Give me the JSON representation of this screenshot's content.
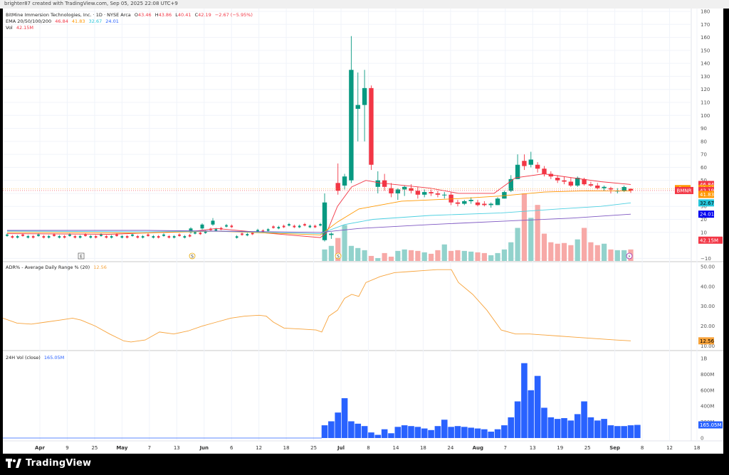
{
  "header": {
    "text": "brighter87 created with TradingView.com, Sep 05, 2025 22:08 UTC+9"
  },
  "legend": {
    "symbol": "BitMine Immersion Technologies, Inc. · 1D · NYSE Arca",
    "ohlc": [
      {
        "label": "O",
        "value": "43.46"
      },
      {
        "label": "H",
        "value": "43.86"
      },
      {
        "label": "L",
        "value": "40.41"
      },
      {
        "label": "C",
        "value": "42.19"
      }
    ],
    "change": "−2.67 (−5.95%)",
    "ema_label": "EMA 20/50/100/200",
    "ema_values": [
      "46.84",
      "41.83",
      "32.67",
      "24.01"
    ],
    "vol_label": "Vol",
    "vol_value": "42.15M",
    "adr_label": "ADR% - Average Daily Range % (20)",
    "adr_value": "12.56",
    "vol24_label": "24H Vol (close)",
    "vol24_value": "165.05M"
  },
  "footer": {
    "brand": "TradingView"
  },
  "colors": {
    "up": "#089981",
    "down": "#f23645",
    "up_vol": "#92d2cc",
    "down_vol": "#f7a9a7",
    "ema20": "#f23645",
    "ema50": "#ff9800",
    "ema100": "#4dd0e1",
    "ema200": "#7e57c2",
    "adr": "#f7a33b",
    "vol24": "#2962ff",
    "grid": "#f0f3fa",
    "text": "#131722"
  },
  "chart_data": [
    {
      "type": "candlestick",
      "title": "BitMine Immersion Technologies, Inc. · 1D · NYSE Arca",
      "symbol": "BMNR",
      "y_ticks": [
        -10,
        10,
        20,
        30,
        40,
        50,
        60,
        70,
        80,
        90,
        100,
        110,
        120,
        130,
        140,
        150,
        160,
        170,
        180
      ],
      "ylim": [
        -12,
        180
      ],
      "x_ticks": [
        "Apr",
        "9",
        "25",
        "May",
        "7",
        "13",
        "Jun",
        "6",
        "12",
        "18",
        "25",
        "Jul",
        "8",
        "14",
        "18",
        "24",
        "Aug",
        "7",
        "13",
        "19",
        "25",
        "Sep",
        "8",
        "12",
        "18"
      ],
      "price_labels": [
        {
          "name": "EMA20",
          "value": "46.84"
        },
        {
          "name": "Pre",
          "value": "43.66"
        },
        {
          "name": "BMNR",
          "value": "42.19"
        },
        {
          "name": "EMA50",
          "value": "41.83"
        },
        {
          "name": "EMA100",
          "value": "32.67"
        },
        {
          "name": "EMA200",
          "value": "24.01"
        },
        {
          "name": "Vol",
          "value": "42.15M"
        }
      ],
      "events": [
        {
          "date": "Apr 18",
          "label": "E"
        },
        {
          "date": "May 15",
          "label": "S"
        },
        {
          "date": "Jul 1",
          "label": "S"
        },
        {
          "date": "Sep 4",
          "label": "⚡"
        }
      ],
      "candles": [
        {
          "d": "Jul 1",
          "o": 4,
          "h": 40,
          "l": 3,
          "c": 33
        },
        {
          "d": "Jul 2",
          "o": 8,
          "h": 10,
          "l": 5,
          "c": 9
        },
        {
          "d": "Jul 3",
          "o": 48,
          "h": 63,
          "l": 39,
          "c": 42
        },
        {
          "d": "Jul 4",
          "o": 46,
          "h": 55,
          "l": 43,
          "c": 53
        },
        {
          "d": "Jul 7",
          "o": 50,
          "h": 161,
          "l": 48,
          "c": 135
        },
        {
          "d": "Jul 8",
          "o": 105,
          "h": 133,
          "l": 80,
          "c": 108
        },
        {
          "d": "Jul 9",
          "o": 108,
          "h": 135,
          "l": 80,
          "c": 121
        },
        {
          "d": "Jul 10",
          "o": 121,
          "h": 123,
          "l": 58,
          "c": 62
        },
        {
          "d": "Jul 11",
          "o": 45,
          "h": 57,
          "l": 40,
          "c": 50
        },
        {
          "d": "Jul 14",
          "o": 50,
          "h": 55,
          "l": 42,
          "c": 45
        },
        {
          "d": "Jul 15",
          "o": 44,
          "h": 48,
          "l": 37,
          "c": 40
        },
        {
          "d": "Jul 16",
          "o": 40,
          "h": 44,
          "l": 35,
          "c": 43
        },
        {
          "d": "Jul 17",
          "o": 43,
          "h": 46,
          "l": 38,
          "c": 45
        },
        {
          "d": "Jul 18",
          "o": 44,
          "h": 47,
          "l": 40,
          "c": 42
        },
        {
          "d": "Jul 21",
          "o": 42,
          "h": 45,
          "l": 36,
          "c": 39
        },
        {
          "d": "Jul 22",
          "o": 39,
          "h": 43,
          "l": 37,
          "c": 41
        },
        {
          "d": "Jul 23",
          "o": 41,
          "h": 43,
          "l": 38,
          "c": 40
        },
        {
          "d": "Jul 24",
          "o": 40,
          "h": 42,
          "l": 37,
          "c": 39
        },
        {
          "d": "Jul 25",
          "o": 39,
          "h": 41,
          "l": 36,
          "c": 39
        },
        {
          "d": "Jul 28",
          "o": 39,
          "h": 41,
          "l": 31,
          "c": 33
        },
        {
          "d": "Jul 29",
          "o": 33,
          "h": 35,
          "l": 30,
          "c": 32
        },
        {
          "d": "Jul 30",
          "o": 32,
          "h": 35,
          "l": 31,
          "c": 34
        },
        {
          "d": "Jul 31",
          "o": 34,
          "h": 37,
          "l": 32,
          "c": 35
        },
        {
          "d": "Aug 1",
          "o": 33,
          "h": 35,
          "l": 30,
          "c": 31
        },
        {
          "d": "Aug 4",
          "o": 32,
          "h": 34,
          "l": 30,
          "c": 31
        },
        {
          "d": "Aug 5",
          "o": 31,
          "h": 33,
          "l": 29,
          "c": 32
        },
        {
          "d": "Aug 6",
          "o": 31,
          "h": 37,
          "l": 31,
          "c": 36
        },
        {
          "d": "Aug 7",
          "o": 36,
          "h": 42,
          "l": 36,
          "c": 41
        },
        {
          "d": "Aug 8",
          "o": 42,
          "h": 54,
          "l": 41,
          "c": 51
        },
        {
          "d": "Aug 11",
          "o": 51,
          "h": 70,
          "l": 51,
          "c": 62
        },
        {
          "d": "Aug 12",
          "o": 65,
          "h": 70,
          "l": 58,
          "c": 61
        },
        {
          "d": "Aug 13",
          "o": 62,
          "h": 72,
          "l": 60,
          "c": 66
        },
        {
          "d": "Aug 14",
          "o": 62,
          "h": 64,
          "l": 56,
          "c": 59
        },
        {
          "d": "Aug 15",
          "o": 59,
          "h": 61,
          "l": 53,
          "c": 55
        },
        {
          "d": "Aug 18",
          "o": 55,
          "h": 57,
          "l": 51,
          "c": 53
        },
        {
          "d": "Aug 19",
          "o": 52,
          "h": 54,
          "l": 48,
          "c": 50
        },
        {
          "d": "Aug 20",
          "o": 50,
          "h": 53,
          "l": 47,
          "c": 49
        },
        {
          "d": "Aug 21",
          "o": 49,
          "h": 52,
          "l": 45,
          "c": 46
        },
        {
          "d": "Aug 22",
          "o": 46,
          "h": 53,
          "l": 45,
          "c": 52
        },
        {
          "d": "Aug 25",
          "o": 51,
          "h": 52,
          "l": 46,
          "c": 47
        },
        {
          "d": "Aug 26",
          "o": 47,
          "h": 49,
          "l": 45,
          "c": 46
        },
        {
          "d": "Aug 27",
          "o": 46,
          "h": 48,
          "l": 43,
          "c": 44
        },
        {
          "d": "Aug 28",
          "o": 44,
          "h": 46,
          "l": 42,
          "c": 45
        },
        {
          "d": "Aug 29",
          "o": 44,
          "h": 45,
          "l": 40,
          "c": 43
        },
        {
          "d": "Sep 2",
          "o": 42,
          "h": 44,
          "l": 40,
          "c": 42
        },
        {
          "d": "Sep 3",
          "o": 42,
          "h": 46,
          "l": 41,
          "c": 44.86
        },
        {
          "d": "Sep 4",
          "o": 43.46,
          "h": 43.86,
          "l": 40.41,
          "c": 42.19
        }
      ]
    },
    {
      "type": "line",
      "title": "ADR% - Average Daily Range % (20)",
      "y_ticks": [
        10,
        20,
        30,
        40,
        50
      ],
      "ylim": [
        8,
        50
      ],
      "last_value": "12.56"
    },
    {
      "type": "bar",
      "title": "24H Vol (close)",
      "y_ticks": [
        "0",
        "200M",
        "400M",
        "600M",
        "800M",
        "1B"
      ],
      "ylim": [
        0,
        1000
      ],
      "unit": "M",
      "last_value": "165.05M",
      "values": [
        160,
        210,
        320,
        500,
        210,
        180,
        150,
        70,
        40,
        110,
        60,
        140,
        160,
        150,
        140,
        120,
        100,
        150,
        230,
        140,
        150,
        140,
        130,
        120,
        110,
        80,
        110,
        160,
        260,
        460,
        940,
        600,
        780,
        380,
        260,
        240,
        250,
        220,
        300,
        460,
        260,
        220,
        240,
        160,
        150,
        150,
        160,
        165
      ]
    }
  ]
}
